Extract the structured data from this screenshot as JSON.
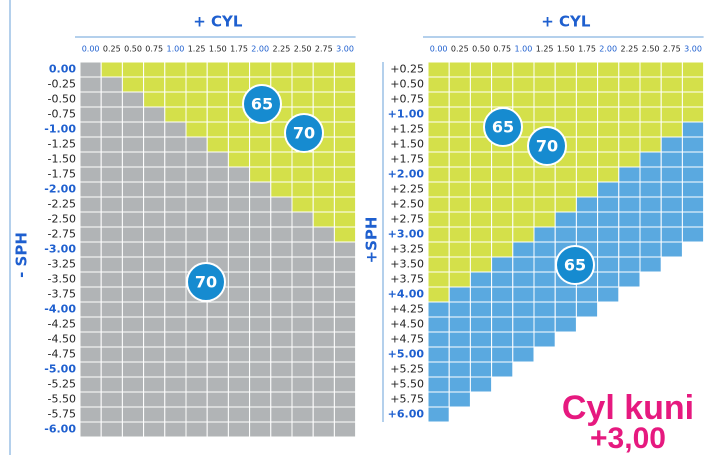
{
  "left": {
    "title": "+ CYL",
    "axis": "- SPH",
    "cyl": [
      "0.00",
      "0.25",
      "0.50",
      "0.75",
      "1.00",
      "1.25",
      "1.50",
      "1.75",
      "2.00",
      "2.25",
      "2.50",
      "2.75",
      "3.00"
    ],
    "sph": [
      "0.00",
      "-0.25",
      "-0.50",
      "-0.75",
      "-1.00",
      "-1.25",
      "-1.50",
      "-1.75",
      "-2.00",
      "-2.25",
      "-2.50",
      "-2.75",
      "-3.00",
      "-3.25",
      "-3.50",
      "-3.75",
      "-4.00",
      "-4.25",
      "-4.50",
      "-4.75",
      "-5.00",
      "-5.25",
      "-5.50",
      "-5.75",
      "-6.00"
    ],
    "badges": [
      "65",
      "70",
      "70"
    ]
  },
  "right": {
    "title": "+ CYL",
    "axis": "+SPH",
    "cyl": [
      "0.00",
      "0.25",
      "0.50",
      "0.75",
      "1.00",
      "1.25",
      "1.50",
      "1.75",
      "2.00",
      "2.25",
      "2.50",
      "2.75",
      "3.00"
    ],
    "sph": [
      "+0.25",
      "+0.50",
      "+0.75",
      "+1.00",
      "+1.25",
      "+1.50",
      "+1.75",
      "+2.00",
      "+2.25",
      "+2.50",
      "+2.75",
      "+3.00",
      "+3.25",
      "+3.50",
      "+3.75",
      "+4.00",
      "+4.25",
      "+4.50",
      "+4.75",
      "+5.00",
      "+5.25",
      "+5.50",
      "+5.75",
      "+6.00"
    ],
    "badges": [
      "65",
      "70",
      "65"
    ]
  },
  "note": [
    "Cyl kuni",
    "+3,00"
  ]
}
